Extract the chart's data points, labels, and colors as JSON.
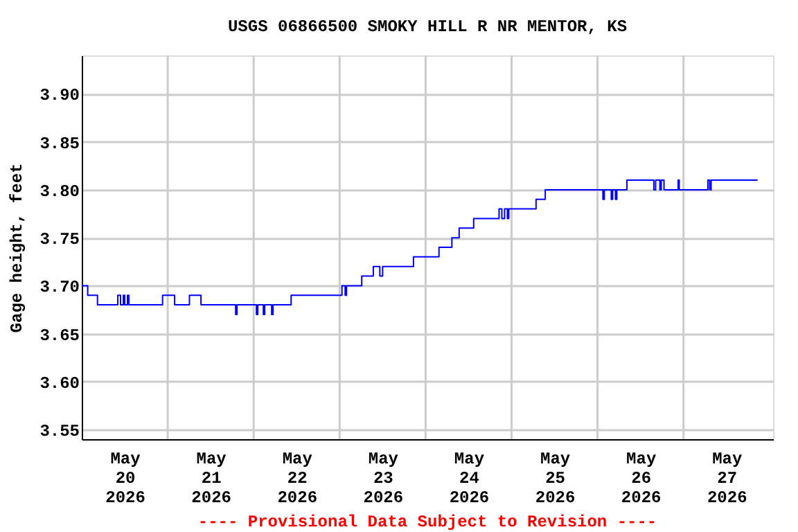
{
  "chart_data": {
    "type": "step",
    "title": "USGS 06866500 SMOKY HILL R NR MENTOR, KS",
    "ylabel": "Gage height, feet",
    "annotations": [
      "---- Provisional Data Subject to Revision ----"
    ],
    "x": [
      "2026-05-20T00:00",
      "2026-05-20T01:40",
      "2026-05-20T04:24",
      "2026-05-20T10:04",
      "2026-05-20T10:50",
      "2026-05-20T11:37",
      "2026-05-20T12:00",
      "2026-05-20T12:46",
      "2026-05-20T13:10",
      "2026-05-20T22:34",
      "2026-05-21T01:56",
      "2026-05-21T06:04",
      "2026-05-21T09:17",
      "2026-05-21T18:58",
      "2026-05-21T19:21",
      "2026-05-22T00:46",
      "2026-05-22T01:09",
      "2026-05-22T02:42",
      "2026-05-22T03:05",
      "2026-05-22T05:01",
      "2026-05-22T05:24",
      "2026-05-22T10:27",
      "2026-05-23T00:39",
      "2026-05-23T01:32",
      "2026-05-23T01:55",
      "2026-05-23T06:10",
      "2026-05-23T09:24",
      "2026-05-23T11:13",
      "2026-05-23T12:00",
      "2026-05-23T20:37",
      "2026-05-24T03:44",
      "2026-05-24T07:20",
      "2026-05-24T09:22",
      "2026-05-24T13:25",
      "2026-05-24T20:30",
      "2026-05-24T21:17",
      "2026-05-24T22:03",
      "2026-05-24T22:50",
      "2026-05-24T23:13",
      "2026-05-25T06:50",
      "2026-05-25T09:24",
      "2026-05-26T01:30",
      "2026-05-26T01:53",
      "2026-05-26T03:50",
      "2026-05-26T04:13",
      "2026-05-26T05:00",
      "2026-05-26T05:23",
      "2026-05-26T08:12",
      "2026-05-26T15:43",
      "2026-05-26T16:13",
      "2026-05-26T17:24",
      "2026-05-26T17:47",
      "2026-05-26T18:33",
      "2026-05-26T22:30",
      "2026-05-26T22:48",
      "2026-05-27T06:48",
      "2026-05-27T07:18",
      "2026-05-27T07:42",
      "2026-05-27T20:42"
    ],
    "series": [
      {
        "color": "#0000ff",
        "values": [
          3.7,
          3.69,
          3.68,
          3.69,
          3.68,
          3.69,
          3.68,
          3.69,
          3.68,
          3.69,
          3.68,
          3.69,
          3.68,
          3.67,
          3.68,
          3.67,
          3.68,
          3.67,
          3.68,
          3.67,
          3.68,
          3.69,
          3.7,
          3.69,
          3.7,
          3.71,
          3.72,
          3.71,
          3.72,
          3.73,
          3.74,
          3.75,
          3.76,
          3.77,
          3.78,
          3.77,
          3.78,
          3.77,
          3.78,
          3.79,
          3.8,
          3.79,
          3.8,
          3.79,
          3.8,
          3.79,
          3.8,
          3.81,
          3.8,
          3.81,
          3.8,
          3.81,
          3.8,
          3.81,
          3.8,
          3.81,
          3.8,
          3.81,
          3.81
        ]
      }
    ],
    "xlim": [
      "2026-05-20T00:00",
      "2026-05-28T01:00"
    ],
    "xticks": [
      {
        "value": "2026-05-20T12:00",
        "label": "May\n20\n2026"
      },
      {
        "value": "2026-05-21T12:00",
        "label": "May\n21\n2026"
      },
      {
        "value": "2026-05-22T12:00",
        "label": "May\n22\n2026"
      },
      {
        "value": "2026-05-23T12:00",
        "label": "May\n23\n2026"
      },
      {
        "value": "2026-05-24T12:00",
        "label": "May\n24\n2026"
      },
      {
        "value": "2026-05-25T12:00",
        "label": "May\n25\n2026"
      },
      {
        "value": "2026-05-26T12:00",
        "label": "May\n26\n2026"
      },
      {
        "value": "2026-05-27T12:00",
        "label": "May\n27\n2026"
      },
      {
        "value": "2026-05-21T00:00",
        "label": null
      },
      {
        "value": "2026-05-22T00:00",
        "label": null
      },
      {
        "value": "2026-05-23T00:00",
        "label": null
      },
      {
        "value": "2026-05-24T00:00",
        "label": null
      },
      {
        "value": "2026-05-25T00:00",
        "label": null
      },
      {
        "value": "2026-05-26T00:00",
        "label": null
      },
      {
        "value": "2026-05-27T00:00",
        "label": null
      }
    ],
    "ylim": [
      3.54,
      3.94
    ],
    "yticks": [
      {
        "value": 3.55,
        "label": "3.55"
      },
      {
        "value": 3.6,
        "label": "3.60"
      },
      {
        "value": 3.65,
        "label": "3.65"
      },
      {
        "value": 3.7,
        "label": "3.70"
      },
      {
        "value": 3.75,
        "label": "3.75"
      },
      {
        "value": 3.8,
        "label": "3.80"
      },
      {
        "value": 3.85,
        "label": "3.85"
      },
      {
        "value": 3.9,
        "label": "3.90"
      }
    ],
    "grid": true,
    "marker": "none",
    "line_style": "solid"
  }
}
